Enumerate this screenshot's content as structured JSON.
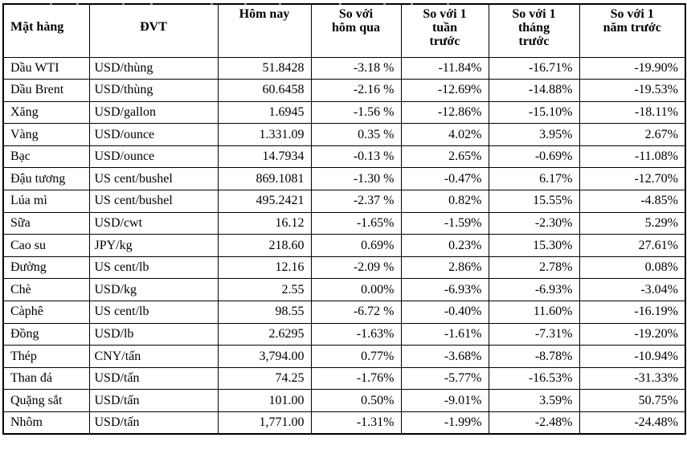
{
  "colors": {
    "background": "#ffffff",
    "text": "#000000",
    "grid_border": "#000000"
  },
  "table": {
    "columns": [
      {
        "key": "item",
        "label": "Mặt hàng"
      },
      {
        "key": "unit",
        "label": "ĐVT"
      },
      {
        "key": "today",
        "label": "Hôm nay"
      },
      {
        "key": "vs-yesterday",
        "label": "So với\nhôm qua"
      },
      {
        "key": "vs-week",
        "label": "So với 1\ntuần\ntrước"
      },
      {
        "key": "vs-month",
        "label": "So với 1\ntháng\ntrước"
      },
      {
        "key": "vs-year",
        "label": "So với 1\nnăm trước"
      }
    ],
    "rows": [
      [
        "Dầu WTI",
        "USD/thùng",
        "51.8428",
        "-3.18 %",
        "-11.84%",
        "-16.71%",
        "-19.90%"
      ],
      [
        "Dầu Brent",
        "USD/thùng",
        "60.6458",
        "-2.16 %",
        "-12.69%",
        "-14.88%",
        "-19.53%"
      ],
      [
        "Xăng",
        "USD/gallon",
        "1.6945",
        "-1.56 %",
        "-12.86%",
        "-15.10%",
        "-18.11%"
      ],
      [
        "Vàng",
        "USD/ounce",
        "1.331.09",
        "0.35 %",
        "4.02%",
        "3.95%",
        "2.67%"
      ],
      [
        "Bạc",
        "USD/ounce",
        "14.7934",
        "-0.13 %",
        "2.65%",
        "-0.69%",
        "-11.08%"
      ],
      [
        "Đậu tương",
        "US cent/bushel",
        "869.1081",
        "-1.30 %",
        "-0.47%",
        "6.17%",
        "-12.70%"
      ],
      [
        "Lúa mì",
        "US cent/bushel",
        "495.2421",
        "-2.37 %",
        "0.82%",
        "15.55%",
        "-4.85%"
      ],
      [
        "Sữa",
        "USD/cwt",
        "16.12",
        "-1.65%",
        "-1.59%",
        "-2.30%",
        "5.29%"
      ],
      [
        "Cao su",
        "JPY/kg",
        "218.60",
        "0.69%",
        "0.23%",
        "15.30%",
        "27.61%"
      ],
      [
        "Đường",
        "US cent/lb",
        "12.16",
        "-2.09 %",
        "2.86%",
        "2.78%",
        "0.08%"
      ],
      [
        "Chè",
        "USD/kg",
        "2.55",
        "0.00%",
        "-6.93%",
        "-6.93%",
        "-3.04%"
      ],
      [
        "Càphê",
        "US cent/lb",
        "98.55",
        "-6.72 %",
        "-0.40%",
        "11.60%",
        "-16.19%"
      ],
      [
        "Đồng",
        "USD/lb",
        "2.6295",
        "-1.63%",
        "-1.61%",
        "-7.31%",
        "-19.20%"
      ],
      [
        "Thép",
        "CNY/tấn",
        "3,794.00",
        "0.77%",
        "-3.68%",
        "-8.78%",
        "-10.94%"
      ],
      [
        "Than đá",
        "USD/tấn",
        "74.25",
        "-1.76%",
        "-5.77%",
        "-16.53%",
        "-31.33%"
      ],
      [
        "Quặng sắt",
        "USD/tấn",
        "101.00",
        "0.50%",
        "-9.01%",
        "3.59%",
        "50.75%"
      ],
      [
        "Nhôm",
        "USD/tấn",
        "1,771.00",
        "-1.31%",
        "-1.99%",
        "-2.48%",
        "-24.48%"
      ]
    ]
  }
}
